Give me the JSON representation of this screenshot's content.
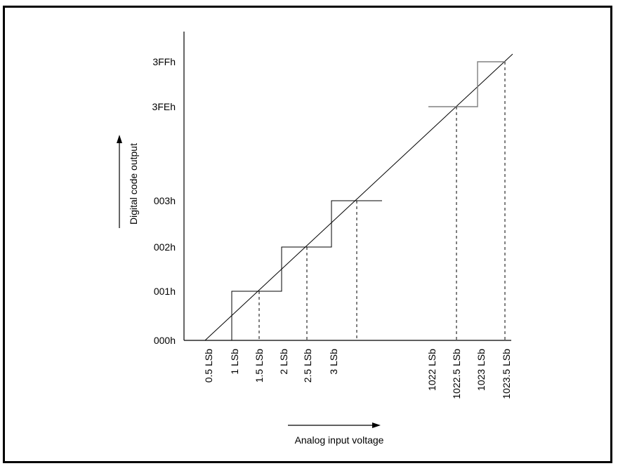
{
  "diagram": {
    "y_axis_title": "Digital code output",
    "x_axis_title": "Analog input voltage",
    "y_ticks": [
      "000h",
      "001h",
      "002h",
      "003h",
      "3FEh",
      "3FFh"
    ],
    "x_ticks": [
      "0.5 LSb",
      "1 LSb",
      "1.5 LSb",
      "2 LSb",
      "2.5 LSb",
      "3 LSb",
      "1022 LSb",
      "1022.5 LSb",
      "1023 LSb",
      "1023.5 LSb"
    ]
  }
}
